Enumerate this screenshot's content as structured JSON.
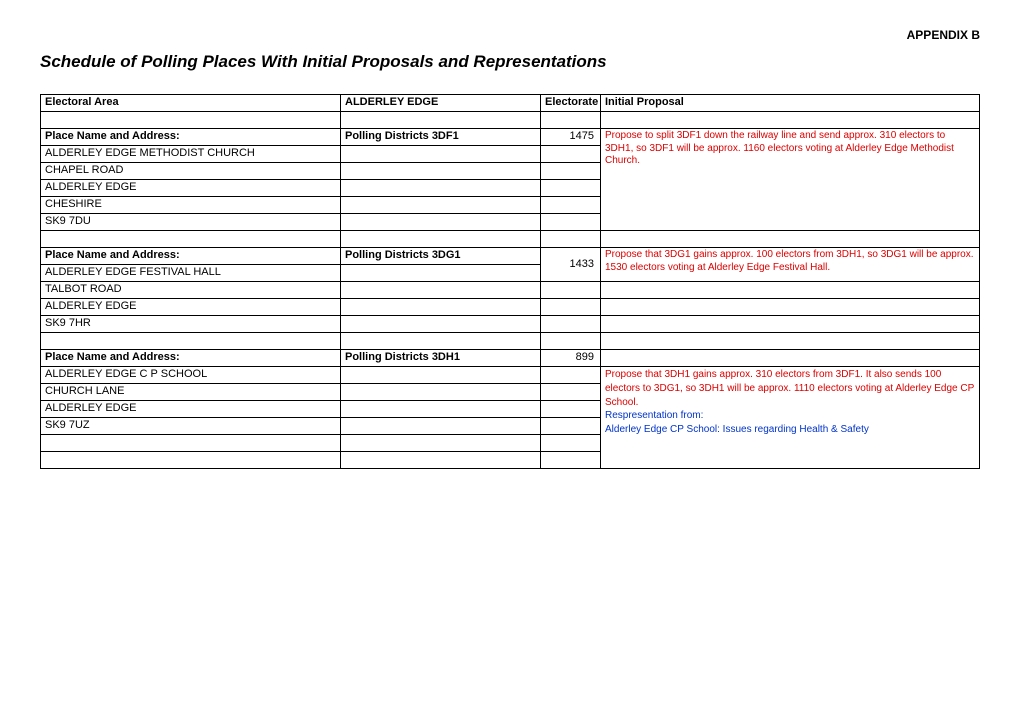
{
  "appendix_label": "APPENDIX B",
  "document_title": "Schedule of Polling Places With Initial Proposals and Representations",
  "header_row": {
    "electoral_area_label": "Electoral Area",
    "area_value": "ALDERLEY EDGE",
    "electorate_label": "Electorate",
    "initial_proposal_label": "Initial Proposal"
  },
  "place_name_label": "Place Name and Address:",
  "polling_districts_label": "Polling Districts",
  "block1": {
    "district": "3DF1",
    "electorate": "1475",
    "address1": "ALDERLEY EDGE METHODIST CHURCH",
    "address2": "CHAPEL ROAD",
    "address3": "ALDERLEY EDGE",
    "address4": "CHESHIRE",
    "address5": "SK9 7DU",
    "proposal": "Propose to split 3DF1 down the railway line and send approx. 310 electors to 3DH1, so 3DF1 will be approx. 1160 electors voting at Alderley Edge Methodist Church."
  },
  "block2": {
    "district": "3DG1",
    "electorate": "1433",
    "address1": "ALDERLEY EDGE FESTIVAL HALL",
    "address2": "TALBOT ROAD",
    "address3": "ALDERLEY EDGE",
    "address4": "SK9 7HR",
    "proposal": "Propose that 3DG1 gains approx. 100 electors from 3DH1, so 3DG1 will be approx. 1530 electors voting at Alderley Edge Festival Hall."
  },
  "block3": {
    "district": "3DH1",
    "electorate": "899",
    "address1": "ALDERLEY EDGE C P SCHOOL",
    "address2": "CHURCH LANE",
    "address3": "ALDERLEY EDGE",
    "address4": "SK9 7UZ",
    "proposal_red": "Propose that 3DH1 gains approx. 310 electors from 3DF1. It also sends 100 electors to 3DG1, so 3DH1 will be approx. 1110 electors voting at Alderley Edge CP School.",
    "rep_header": "Respresentation from:",
    "rep_text": "Alderley Edge CP School: Issues regarding Health & Safety"
  }
}
